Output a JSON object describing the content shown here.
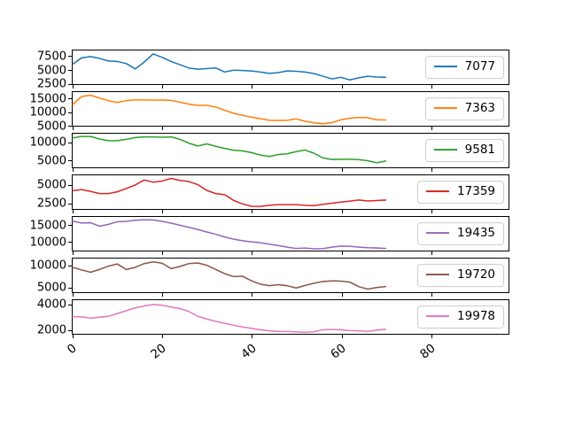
{
  "figure": {
    "background": "#ffffff"
  },
  "chart_data": {
    "type": "line",
    "title": "",
    "layout": "7 vertically stacked subplots sharing one x axis",
    "grid": false,
    "legend_position": "center right (one legend box per subplot)",
    "x": [
      0,
      2,
      4,
      6,
      8,
      10,
      12,
      14,
      16,
      18,
      20,
      22,
      24,
      26,
      28,
      30,
      32,
      34,
      36,
      38,
      40,
      42,
      44,
      46,
      48,
      50,
      52,
      54,
      56,
      58,
      60,
      62,
      64,
      66,
      68,
      70
    ],
    "xlim": [
      0,
      97.5
    ],
    "xticks": [
      0,
      20,
      40,
      60,
      80
    ],
    "xtick_labels": [
      "0",
      "20",
      "40",
      "60",
      "80"
    ],
    "series": [
      {
        "name": "7077",
        "color": "#1f77b4",
        "yticks": [
          2500,
          5000,
          7500
        ],
        "ylim": [
          2200,
          8600
        ],
        "values": [
          6000,
          7200,
          7450,
          7100,
          6600,
          6500,
          6100,
          5100,
          6400,
          7950,
          7300,
          6500,
          5900,
          5250,
          5050,
          5150,
          5280,
          4500,
          4850,
          4800,
          4700,
          4500,
          4250,
          4400,
          4700,
          4650,
          4500,
          4200,
          3700,
          3200,
          3500,
          3000,
          3400,
          3700,
          3550,
          3500
        ]
      },
      {
        "name": "7363",
        "color": "#ff7f0e",
        "yticks": [
          5000,
          10000,
          15000
        ],
        "ylim": [
          4600,
          17500
        ],
        "values": [
          12700,
          15800,
          16300,
          15200,
          14200,
          13500,
          14200,
          14500,
          14500,
          14400,
          14500,
          14300,
          13600,
          12900,
          12400,
          12400,
          11800,
          10500,
          9400,
          8600,
          7900,
          7300,
          6700,
          6600,
          6700,
          7200,
          6300,
          5700,
          5350,
          5800,
          6900,
          7500,
          7800,
          7700,
          6900,
          6800
        ]
      },
      {
        "name": "9581",
        "color": "#2ca02c",
        "yticks": [
          5000,
          10000
        ],
        "ylim": [
          2800,
          12400
        ],
        "values": [
          11200,
          11600,
          11600,
          10900,
          10400,
          10400,
          10800,
          11300,
          11500,
          11500,
          11400,
          11500,
          10800,
          9700,
          8900,
          9500,
          8800,
          8200,
          7700,
          7500,
          7000,
          6300,
          5900,
          6450,
          6700,
          7300,
          7750,
          6800,
          5500,
          5050,
          5100,
          5100,
          5000,
          4700,
          4100,
          4600
        ]
      },
      {
        "name": "17359",
        "color": "#d62728",
        "yticks": [
          2500,
          5000
        ],
        "ylim": [
          1600,
          6300
        ],
        "values": [
          4150,
          4300,
          4050,
          3750,
          3750,
          4000,
          4450,
          4950,
          5650,
          5350,
          5500,
          5860,
          5600,
          5430,
          5000,
          4200,
          3750,
          3600,
          2800,
          2300,
          1980,
          1950,
          2110,
          2200,
          2200,
          2200,
          2100,
          2070,
          2250,
          2400,
          2550,
          2700,
          2850,
          2720,
          2780,
          2850
        ]
      },
      {
        "name": "19435",
        "color": "#9467bd",
        "yticks": [
          10000,
          15000
        ],
        "ylim": [
          7100,
          17600
        ],
        "values": [
          16300,
          15700,
          15800,
          14700,
          15300,
          16100,
          16200,
          16550,
          16700,
          16650,
          16200,
          15650,
          15000,
          14350,
          13650,
          12900,
          12200,
          11350,
          10650,
          10180,
          9820,
          9550,
          9100,
          8640,
          8180,
          7750,
          7900,
          7640,
          7730,
          8180,
          8480,
          8450,
          8180,
          8000,
          7910,
          7750
        ]
      },
      {
        "name": "19720",
        "color": "#8c564b",
        "yticks": [
          5000,
          10000
        ],
        "ylim": [
          3600,
          11600
        ],
        "values": [
          9500,
          8900,
          8350,
          9000,
          9800,
          10300,
          9000,
          9500,
          10400,
          10800,
          10500,
          9200,
          9700,
          10400,
          10550,
          10000,
          9000,
          8000,
          7300,
          7400,
          6300,
          5500,
          5160,
          5400,
          5150,
          4600,
          5200,
          5750,
          6150,
          6290,
          6250,
          6000,
          4900,
          4350,
          4700,
          4950
        ]
      },
      {
        "name": "19978",
        "color": "#e377c2",
        "yticks": [
          2000,
          4000
        ],
        "ylim": [
          1600,
          4350
        ],
        "values": [
          3000,
          2990,
          2870,
          2960,
          3030,
          3260,
          3490,
          3720,
          3880,
          3990,
          3930,
          3790,
          3660,
          3430,
          3030,
          2800,
          2620,
          2460,
          2300,
          2160,
          2050,
          1930,
          1840,
          1790,
          1790,
          1750,
          1720,
          1770,
          1930,
          1950,
          1930,
          1860,
          1840,
          1790,
          1900,
          1960
        ]
      }
    ]
  }
}
